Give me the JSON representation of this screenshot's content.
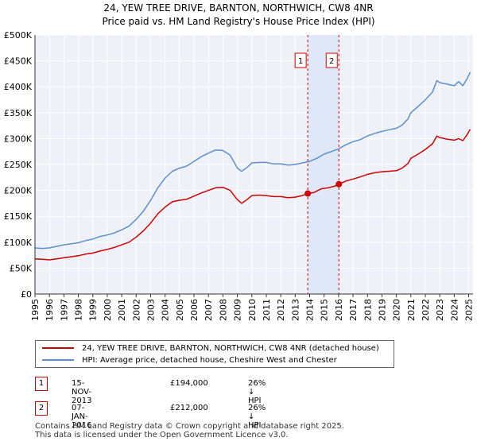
{
  "title_line1": "24, YEW TREE DRIVE, BARNTON, NORTHWICH, CW8 4NR",
  "title_line2": "Price paid vs. HM Land Registry's House Price Index (HPI)",
  "legend": {
    "property_label": "24, YEW TREE DRIVE, BARNTON, NORTHWICH, CW8 4NR (detached house)",
    "hpi_label": "HPI: Average price, detached house, Cheshire West and Chester",
    "property_color": "#cc0000",
    "hpi_color": "#5b8fd0"
  },
  "transactions": [
    {
      "num": "1",
      "date": "15-NOV-2013",
      "price": "£194,000",
      "hpi_diff": "26% ↓ HPI"
    },
    {
      "num": "2",
      "date": "07-JAN-2016",
      "price": "£212,000",
      "hpi_diff": "26% ↓ HPI"
    }
  ],
  "footer_line1": "Contains HM Land Registry data © Crown copyright and database right 2025.",
  "footer_line2": "This data is licensed under the Open Government Licence v3.0.",
  "chart_data": {
    "type": "line",
    "title": "24, YEW TREE DRIVE, BARNTON, NORTHWICH, CW8 4NR",
    "subtitle": "Price paid vs. HM Land Registry's House Price Index (HPI)",
    "xlabel": "",
    "ylabel": "",
    "xlim": [
      1995,
      2025.3
    ],
    "ylim": [
      0,
      500000
    ],
    "x_ticks": [
      "1995",
      "1996",
      "1997",
      "1998",
      "1999",
      "2000",
      "2001",
      "2002",
      "2003",
      "2004",
      "2005",
      "2006",
      "2007",
      "2008",
      "2009",
      "2010",
      "2011",
      "2012",
      "2013",
      "2014",
      "2015",
      "2016",
      "2017",
      "2018",
      "2019",
      "2020",
      "2021",
      "2022",
      "2023",
      "2024",
      "2025"
    ],
    "y_ticks": [
      "£0",
      "£50K",
      "£100K",
      "£150K",
      "£200K",
      "£250K",
      "£300K",
      "£350K",
      "£400K",
      "£450K",
      "£500K"
    ],
    "y_tick_values": [
      0,
      50000,
      100000,
      150000,
      200000,
      250000,
      300000,
      350000,
      400000,
      450000,
      500000
    ],
    "grid": true,
    "highlight_band": {
      "from": 2013.87,
      "to": 2016.02
    },
    "markers": [
      {
        "label": "1",
        "x": 2013.87,
        "y": 194000
      },
      {
        "label": "2",
        "x": 2016.02,
        "y": 212000
      }
    ],
    "series": [
      {
        "name": "24, YEW TREE DRIVE, BARNTON, NORTHWICH, CW8 4NR (detached house)",
        "color": "#cc0000",
        "x": [
          1995,
          1995.5,
          1996,
          1996.5,
          1997,
          1997.5,
          1998,
          1998.5,
          1999,
          1999.5,
          2000,
          2000.5,
          2001,
          2001.5,
          2002,
          2002.5,
          2003,
          2003.5,
          2004,
          2004.5,
          2005,
          2005.5,
          2006,
          2006.5,
          2007,
          2007.5,
          2008,
          2008.5,
          2009,
          2009.3,
          2009.7,
          2010,
          2010.5,
          2011,
          2011.5,
          2012,
          2012.5,
          2013,
          2013.5,
          2013.87,
          2014.3,
          2014.8,
          2015.3,
          2015.7,
          2016.02,
          2016.5,
          2017,
          2017.5,
          2018,
          2018.5,
          2019,
          2019.5,
          2020,
          2020.4,
          2020.8,
          2021,
          2021.5,
          2022,
          2022.5,
          2022.8,
          2023,
          2023.5,
          2024,
          2024.3,
          2024.6,
          2024.9,
          2025.1
        ],
        "values": [
          68000,
          67000,
          66000,
          68000,
          70000,
          72000,
          74000,
          77000,
          79000,
          83000,
          86000,
          90000,
          95000,
          100000,
          110000,
          122000,
          137000,
          155000,
          168000,
          178000,
          181000,
          183000,
          189000,
          195000,
          200000,
          205000,
          206000,
          200000,
          182000,
          175000,
          183000,
          190000,
          191000,
          190000,
          188000,
          188000,
          186000,
          187000,
          190000,
          194000,
          196000,
          203000,
          205000,
          208000,
          212000,
          218000,
          222000,
          226000,
          231000,
          234000,
          236000,
          237000,
          238000,
          243000,
          252000,
          262000,
          270000,
          279000,
          290000,
          305000,
          302000,
          299000,
          297000,
          300000,
          296000,
          308000,
          318000
        ]
      },
      {
        "name": "HPI: Average price, detached house, Cheshire West and Chester",
        "color": "#5b8fd0",
        "x": [
          1995,
          1995.5,
          1996,
          1996.5,
          1997,
          1997.5,
          1998,
          1998.5,
          1999,
          1999.5,
          2000,
          2000.5,
          2001,
          2001.5,
          2002,
          2002.5,
          2003,
          2003.5,
          2004,
          2004.5,
          2005,
          2005.5,
          2006,
          2006.5,
          2007,
          2007.5,
          2008,
          2008.5,
          2009,
          2009.3,
          2009.7,
          2010,
          2010.5,
          2011,
          2011.5,
          2012,
          2012.5,
          2013,
          2013.5,
          2014,
          2014.5,
          2015,
          2015.5,
          2016,
          2016.5,
          2017,
          2017.5,
          2018,
          2018.5,
          2019,
          2019.5,
          2020,
          2020.4,
          2020.8,
          2021,
          2021.5,
          2022,
          2022.5,
          2022.8,
          2023,
          2023.5,
          2024,
          2024.3,
          2024.6,
          2024.9,
          2025.1
        ],
        "values": [
          89000,
          88000,
          89000,
          92000,
          95000,
          97000,
          99000,
          103000,
          106000,
          111000,
          114000,
          118000,
          124000,
          131000,
          144000,
          160000,
          181000,
          205000,
          224000,
          237000,
          243000,
          247000,
          256000,
          265000,
          272000,
          278000,
          277000,
          268000,
          243000,
          237000,
          245000,
          253000,
          254000,
          254000,
          251000,
          251000,
          249000,
          250000,
          253000,
          256000,
          262000,
          270000,
          275000,
          280000,
          288000,
          294000,
          298000,
          305000,
          310000,
          314000,
          317000,
          320000,
          326000,
          338000,
          350000,
          362000,
          375000,
          390000,
          412000,
          408000,
          405000,
          402000,
          410000,
          402000,
          416000,
          428000
        ]
      }
    ]
  }
}
